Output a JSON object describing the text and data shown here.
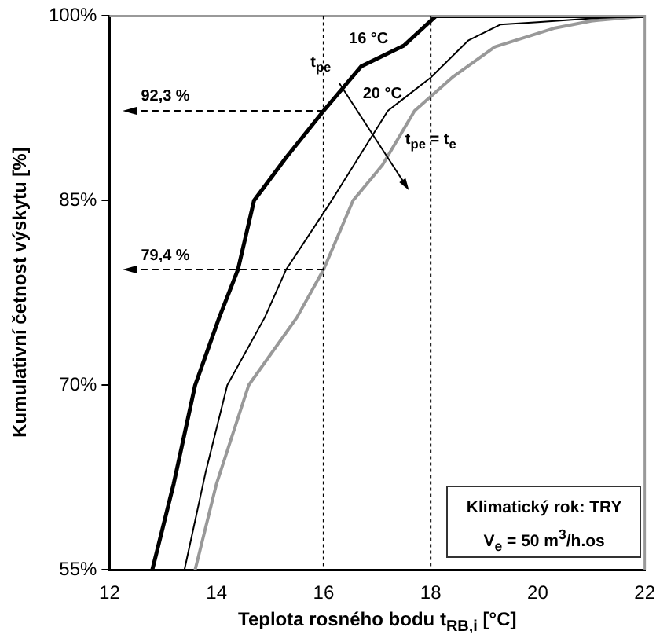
{
  "chart_data": {
    "type": "line",
    "xlabel": "Teplota rosného bodu t$_{RB,i}$ [°C]",
    "ylabel": "Kumulativní četnost výskytu [%]",
    "xlim": [
      12,
      22
    ],
    "xticks": [
      12,
      14,
      16,
      18,
      20,
      22
    ],
    "ylim": [
      55,
      100
    ],
    "yticks": [
      {
        "value": 55,
        "label": "55%"
      },
      {
        "value": 70,
        "label": "70%"
      },
      {
        "value": 85,
        "label": "85%"
      },
      {
        "value": 100,
        "label": "100%"
      }
    ],
    "grid": false,
    "legend": false,
    "marker": "none",
    "line_style": "solid",
    "series": [
      {
        "name": "16 °C",
        "color": "#000000",
        "x": [
          12.8,
          13.2,
          13.6,
          14.05,
          14.4,
          14.7,
          15.3,
          16,
          16.7,
          17.5,
          18.1,
          19,
          20,
          22
        ],
        "values": [
          55,
          62,
          70,
          75.5,
          79.4,
          85,
          88.5,
          92.3,
          95.9,
          97.6,
          100,
          100,
          100,
          100
        ]
      },
      {
        "name": "20 °C",
        "color": "#000000",
        "x": [
          13.4,
          13.8,
          14.2,
          14.9,
          15.3,
          16.15,
          17.2,
          18,
          18.7,
          19.3,
          20,
          21,
          22
        ],
        "values": [
          55,
          63,
          70,
          75.5,
          79.4,
          85,
          92.3,
          95,
          98,
          99.3,
          99.5,
          99.8,
          100
        ]
      },
      {
        "name": "t$_{pe}$ = t$_{e}$",
        "color": "#999999",
        "x": [
          13.6,
          14,
          14.6,
          15.5,
          16,
          16.55,
          17.1,
          17.7,
          18.4,
          19.2,
          20.3,
          21,
          22
        ],
        "values": [
          55,
          62,
          70,
          75.5,
          79.4,
          85,
          87.9,
          92.3,
          95,
          97.5,
          99,
          99.6,
          100
        ]
      }
    ],
    "ref_lines": [
      {
        "axis": "x",
        "value": 16,
        "line_style": "dotted"
      },
      {
        "axis": "x",
        "value": 18,
        "line_style": "dotted"
      },
      {
        "axis": "y",
        "value": 92.3,
        "label": "92,3 %",
        "line_style": "dashed"
      },
      {
        "axis": "y",
        "value": 79.4,
        "label": "79,4 %",
        "line_style": "dashed"
      }
    ],
    "annotations": [
      "t$_{pe}$",
      "Klimatický rok: TRY",
      "V$_{e}$ = 50 m$^{3}$/h.os"
    ]
  }
}
